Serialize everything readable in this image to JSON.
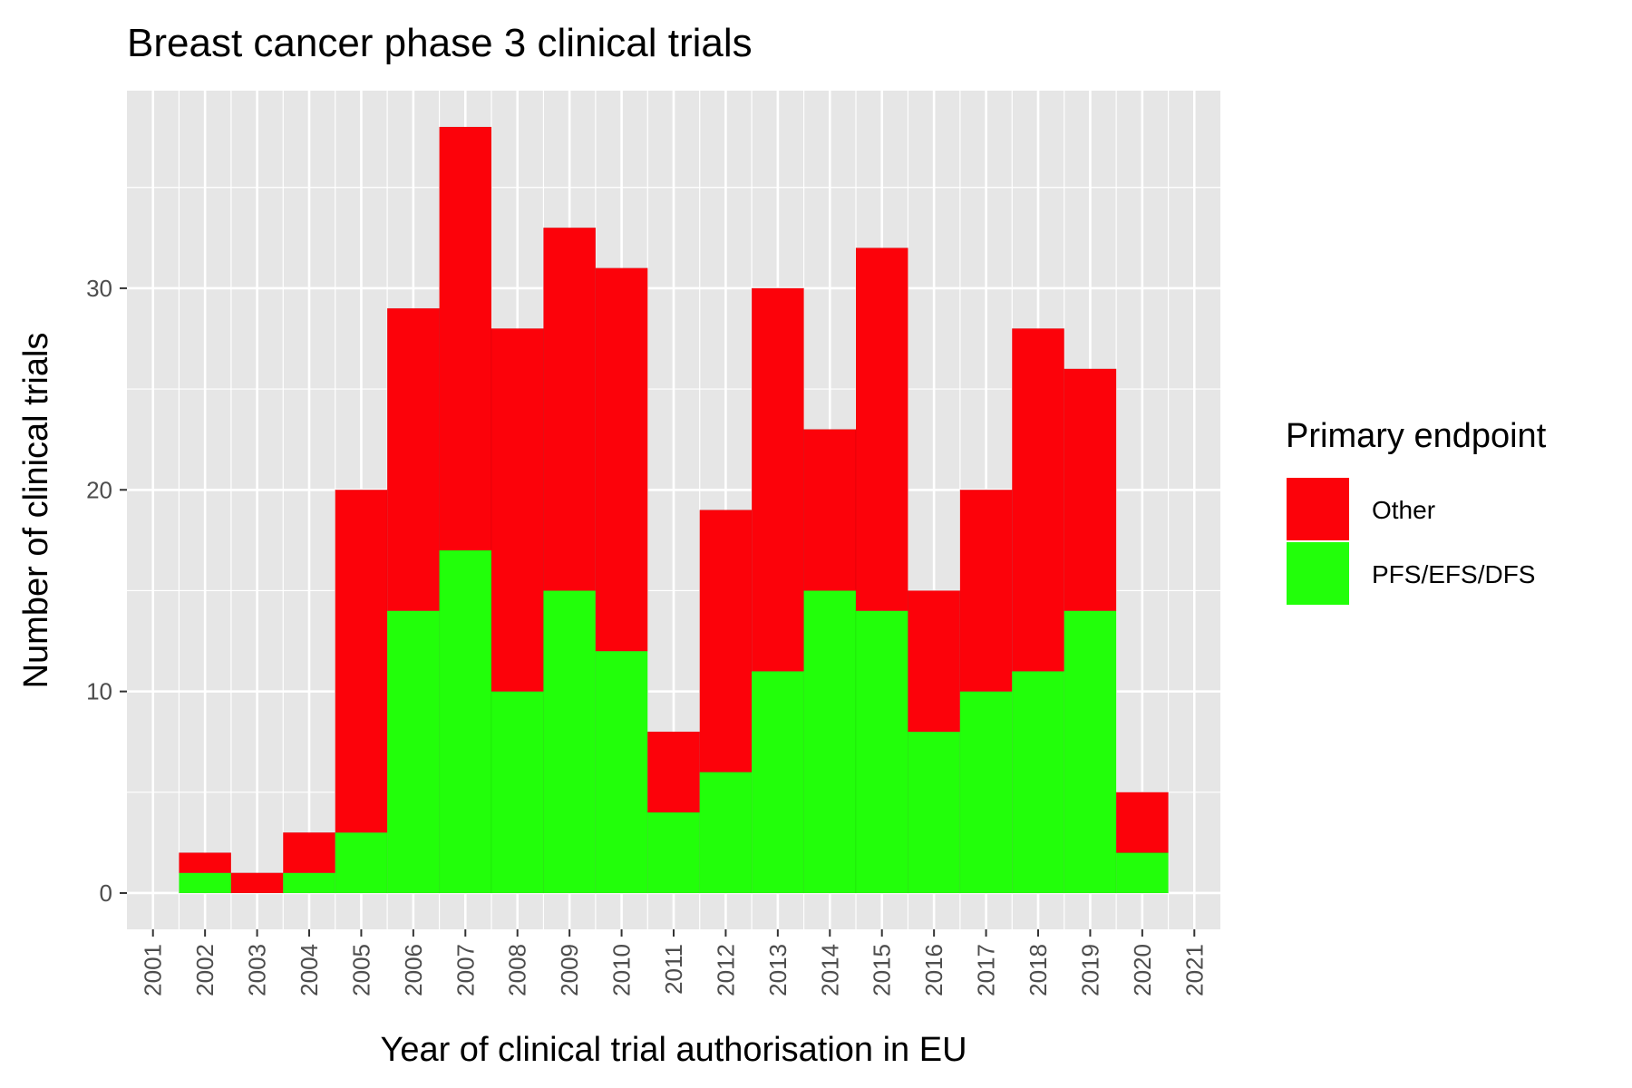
{
  "chart_data": {
    "type": "bar",
    "stacked": true,
    "title": "Breast cancer phase 3 clinical trials",
    "xlabel": "Year of clinical trial authorisation in EU",
    "ylabel": "Number of clinical trials",
    "x_tick_labels": [
      "2001",
      "2002",
      "2003",
      "2004",
      "2005",
      "2006",
      "2007",
      "2008",
      "2009",
      "2010",
      "2011",
      "2012",
      "2013",
      "2014",
      "2015",
      "2016",
      "2017",
      "2018",
      "2019",
      "2020",
      "2021"
    ],
    "y_tick_labels": [
      "0",
      "10",
      "20",
      "30"
    ],
    "y_ticks": [
      0,
      10,
      20,
      30
    ],
    "xlim": [
      2000.5,
      2021.5
    ],
    "ylim": [
      -1.8,
      39.8
    ],
    "categories": [
      2002,
      2003,
      2004,
      2005,
      2006,
      2007,
      2008,
      2009,
      2010,
      2011,
      2012,
      2013,
      2014,
      2015,
      2016,
      2017,
      2018,
      2019,
      2020
    ],
    "series": [
      {
        "name": "PFS/EFS/DFS",
        "color": "#22ff0a",
        "values": [
          1,
          0,
          1,
          3,
          14,
          17,
          10,
          15,
          12,
          4,
          6,
          11,
          15,
          14,
          8,
          10,
          11,
          14,
          2
        ]
      },
      {
        "name": "Other",
        "color": "#fc020a",
        "values": [
          1,
          1,
          2,
          17,
          15,
          21,
          18,
          18,
          19,
          4,
          13,
          19,
          8,
          18,
          7,
          10,
          17,
          12,
          3
        ]
      }
    ],
    "totals": [
      2,
      1,
      3,
      20,
      29,
      38,
      28,
      33,
      31,
      8,
      19,
      30,
      23,
      32,
      15,
      20,
      28,
      26,
      5
    ],
    "grid": true,
    "panel_background": "#e6e6e6",
    "grid_color": "#ffffff",
    "legend": {
      "title": "Primary endpoint",
      "position": "right",
      "entries": [
        {
          "label": "Other",
          "color": "#fc020a"
        },
        {
          "label": "PFS/EFS/DFS",
          "color": "#22ff0a"
        }
      ]
    }
  }
}
